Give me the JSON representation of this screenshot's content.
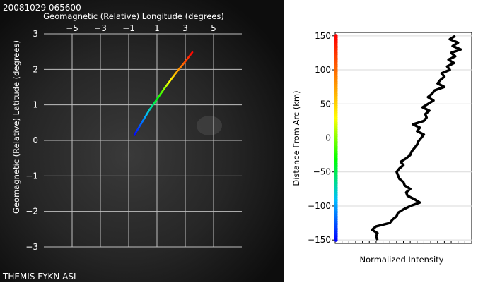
{
  "header": {
    "timestamp": "20081029 065600",
    "caption": "THEMIS FYKN ASI"
  },
  "colors": {
    "background": "#0a0a0a",
    "grid": "#bfbfbf",
    "text_on_dark": "#ffffff",
    "text_on_light": "#000000",
    "intensity_trace": "#000000",
    "colormap": [
      "#0000ff",
      "#00bfff",
      "#00ff00",
      "#ffff00",
      "#ff8000",
      "#ff0000"
    ]
  },
  "chart_data": [
    {
      "type": "line",
      "title": "",
      "xlabel": "Geomagnetic (Relative) Longitude (degrees)",
      "ylabel": "Geomagnetic (Relative) Latitude (degrees)",
      "xlim": [
        -7,
        7
      ],
      "ylim": [
        -3,
        3
      ],
      "x_ticks": [
        -5,
        -3,
        -1,
        1,
        3,
        5
      ],
      "y_ticks": [
        3,
        2,
        1,
        0,
        -1,
        -2,
        -3
      ],
      "grid": true,
      "series": [
        {
          "x": [
            -0.6,
            0.0,
            0.5,
            1.0,
            1.5,
            2.0,
            2.5,
            3.0,
            3.5
          ],
          "y": [
            0.15,
            0.55,
            0.88,
            1.16,
            1.45,
            1.72,
            1.98,
            2.22,
            2.48
          ]
        }
      ]
    },
    {
      "type": "line",
      "title": "",
      "xlabel": "Normalized Intensity",
      "ylabel": "Distance From Arc (km)",
      "ylim": [
        -155,
        155
      ],
      "y_ticks": [
        150,
        100,
        50,
        0,
        -50,
        -100,
        -150
      ],
      "grid": true,
      "series": [
        {
          "distance_km": [
            -150,
            -145,
            -140,
            -135,
            -130,
            -125,
            -120,
            -115,
            -110,
            -105,
            -100,
            -95,
            -90,
            -85,
            -80,
            -75,
            -70,
            -65,
            -60,
            -55,
            -50,
            -45,
            -40,
            -35,
            -30,
            -25,
            -20,
            -15,
            -10,
            -5,
            0,
            5,
            10,
            15,
            20,
            25,
            30,
            35,
            40,
            45,
            50,
            55,
            60,
            65,
            70,
            75,
            80,
            85,
            90,
            95,
            100,
            105,
            110,
            115,
            120,
            125,
            130,
            135,
            140,
            145,
            150
          ],
          "intensity": [
            0.31,
            0.3,
            0.31,
            0.27,
            0.3,
            0.4,
            0.42,
            0.45,
            0.46,
            0.5,
            0.55,
            0.62,
            0.58,
            0.53,
            0.52,
            0.55,
            0.51,
            0.5,
            0.47,
            0.46,
            0.45,
            0.47,
            0.5,
            0.48,
            0.52,
            0.55,
            0.56,
            0.58,
            0.6,
            0.61,
            0.63,
            0.65,
            0.6,
            0.62,
            0.57,
            0.65,
            0.67,
            0.66,
            0.69,
            0.64,
            0.68,
            0.72,
            0.68,
            0.71,
            0.73,
            0.8,
            0.75,
            0.77,
            0.8,
            0.78,
            0.84,
            0.82,
            0.87,
            0.83,
            0.88,
            0.85,
            0.92,
            0.86,
            0.9,
            0.84,
            0.88
          ]
        }
      ]
    }
  ]
}
